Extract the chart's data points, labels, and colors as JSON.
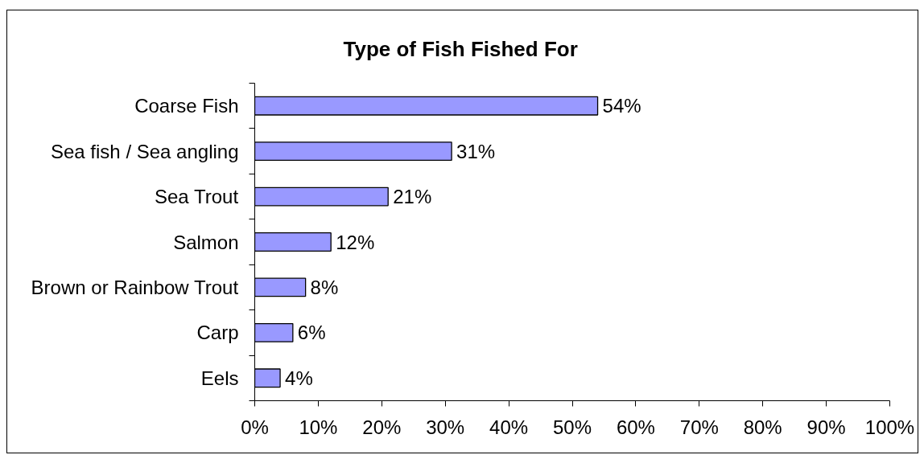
{
  "chart_data": {
    "type": "bar",
    "title": "Type of Fish Fished For",
    "orientation": "horizontal",
    "categories": [
      "Coarse Fish",
      "Sea fish / Sea angling",
      "Sea Trout",
      "Salmon",
      "Brown or Rainbow Trout",
      "Carp",
      "Eels"
    ],
    "values": [
      54,
      31,
      21,
      12,
      8,
      6,
      4
    ],
    "value_labels": [
      "54%",
      "31%",
      "21%",
      "12%",
      "8%",
      "6%",
      "4%"
    ],
    "color": "#9999ff",
    "xlim": [
      0,
      100
    ],
    "xticks": [
      {
        "value": 0,
        "label": "0%"
      },
      {
        "value": 10,
        "label": "10%"
      },
      {
        "value": 20,
        "label": "20%"
      },
      {
        "value": 30,
        "label": "30%"
      },
      {
        "value": 40,
        "label": "40%"
      },
      {
        "value": 50,
        "label": "50%"
      },
      {
        "value": 60,
        "label": "60%"
      },
      {
        "value": 70,
        "label": "70%"
      },
      {
        "value": 80,
        "label": "80%"
      },
      {
        "value": 90,
        "label": "90%"
      },
      {
        "value": 100,
        "label": "100%"
      }
    ]
  }
}
